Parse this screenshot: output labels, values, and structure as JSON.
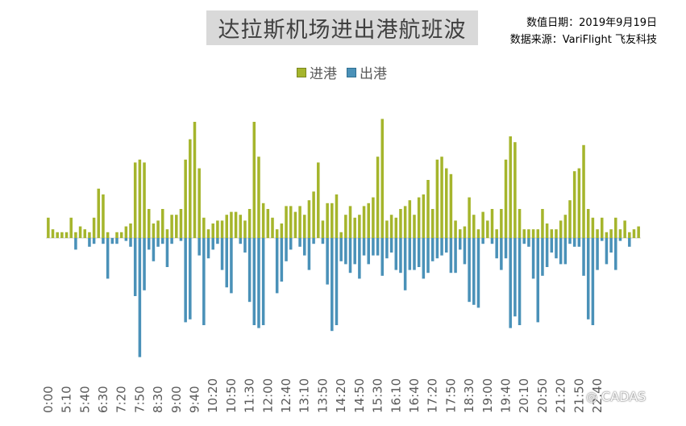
{
  "chart_data": {
    "type": "bar",
    "title": "达拉斯机场进出港航班波",
    "note_date": "数值日期：2019年9月19日",
    "note_source": "数据来源：VariFlight 飞友科技",
    "interval_minutes": 5,
    "start_time": "0:00",
    "tick_labels": [
      "0:00",
      "5:10",
      "5:40",
      "6:30",
      "7:20",
      "7:50",
      "8:30",
      "9:00",
      "9:40",
      "10:20",
      "10:50",
      "11:30",
      "12:00",
      "12:40",
      "13:10",
      "13:50",
      "14:20",
      "14:50",
      "15:30",
      "16:10",
      "16:40",
      "17:20",
      "17:50",
      "18:30",
      "19:00",
      "19:40",
      "20:10",
      "20:50",
      "21:20",
      "21:50",
      "22:40"
    ],
    "tick_label_every": 4,
    "series": [
      {
        "name": "进港",
        "color": "#a5b52c",
        "values": [
          7,
          3,
          2,
          2,
          2,
          7,
          2,
          4,
          3,
          2,
          7,
          17,
          15,
          2,
          0,
          2,
          2,
          4,
          5,
          26,
          27,
          26,
          10,
          5,
          6,
          10,
          3,
          8,
          8,
          10,
          27,
          34,
          40,
          24,
          7,
          3,
          5,
          6,
          6,
          8,
          9,
          9,
          8,
          6,
          10,
          40,
          28,
          12,
          10,
          7,
          3,
          5,
          11,
          11,
          9,
          11,
          8,
          13,
          16,
          26,
          6,
          12,
          12,
          15,
          2,
          8,
          11,
          7,
          8,
          11,
          12,
          14,
          28,
          41,
          6,
          8,
          7,
          10,
          11,
          13,
          8,
          14,
          15,
          20,
          10,
          27,
          28,
          24,
          22,
          6,
          3,
          4,
          14,
          8,
          3,
          9,
          6,
          10,
          3,
          10,
          27,
          35,
          33,
          10,
          3,
          3,
          3,
          3,
          10,
          5,
          3,
          3,
          6,
          8,
          13,
          23,
          24,
          32,
          10,
          7,
          3,
          7,
          2,
          3,
          7,
          3,
          6,
          2,
          3,
          4
        ]
      },
      {
        "name": "出港",
        "color": "#4a91b8",
        "values": [
          0,
          0,
          0,
          0,
          0,
          0,
          4,
          0,
          0,
          3,
          2,
          0,
          2,
          14,
          2,
          2,
          0,
          1,
          3,
          20,
          41,
          18,
          4,
          8,
          3,
          2,
          10,
          2,
          0,
          1,
          29,
          28,
          0,
          6,
          30,
          7,
          4,
          2,
          11,
          17,
          19,
          0,
          2,
          5,
          22,
          30,
          31,
          30,
          0,
          0,
          19,
          15,
          8,
          4,
          0,
          3,
          6,
          11,
          2,
          0,
          2,
          16,
          32,
          30,
          8,
          9,
          12,
          9,
          14,
          6,
          9,
          6,
          6,
          13,
          7,
          5,
          11,
          12,
          18,
          11,
          11,
          10,
          14,
          12,
          8,
          7,
          6,
          5,
          12,
          12,
          4,
          9,
          22,
          23,
          24,
          2,
          0,
          2,
          7,
          11,
          7,
          31,
          27,
          30,
          2,
          3,
          14,
          29,
          13,
          10,
          5,
          7,
          9,
          9,
          2,
          3,
          3,
          13,
          28,
          30,
          11,
          1,
          9,
          5,
          11,
          1,
          0,
          3,
          0,
          0
        ]
      }
    ],
    "watermark": "CADAS"
  }
}
